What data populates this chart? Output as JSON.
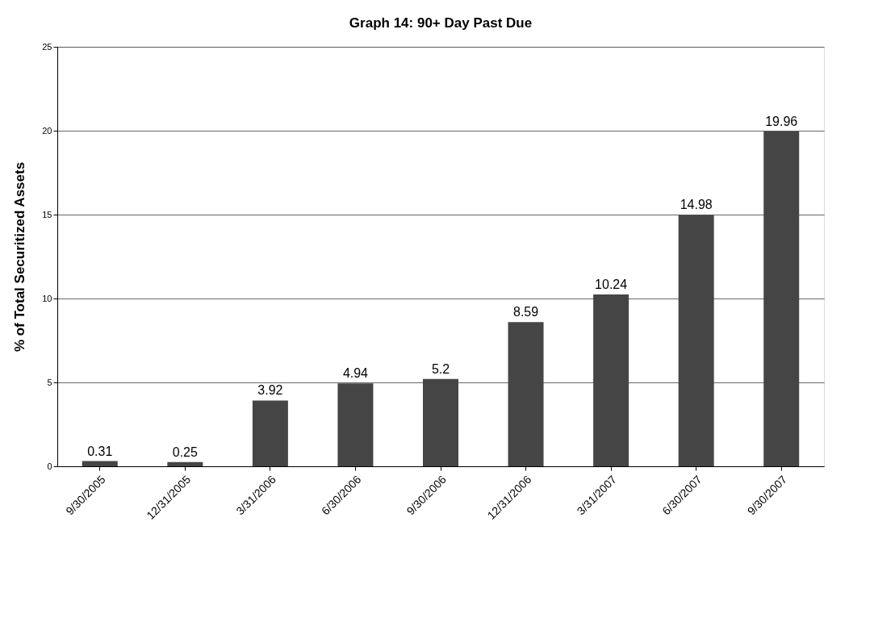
{
  "chart_data": {
    "type": "bar",
    "title": "Graph 14: 90+ Day Past Due",
    "ylabel": "% of Total Securitized Assets",
    "categories": [
      "9/30/2005",
      "12/31/2005",
      "3/31/2006",
      "6/30/2006",
      "9/30/2006",
      "12/31/2006",
      "3/31/2007",
      "6/30/2007",
      "9/30/2007"
    ],
    "values": [
      0.31,
      0.25,
      3.92,
      4.94,
      5.2,
      8.59,
      10.24,
      14.98,
      19.96
    ],
    "color": "#454545",
    "ylim": [
      0,
      25
    ],
    "yticks": [
      0,
      5,
      10,
      15,
      20,
      25
    ],
    "grid": "y",
    "data_labels": true
  }
}
